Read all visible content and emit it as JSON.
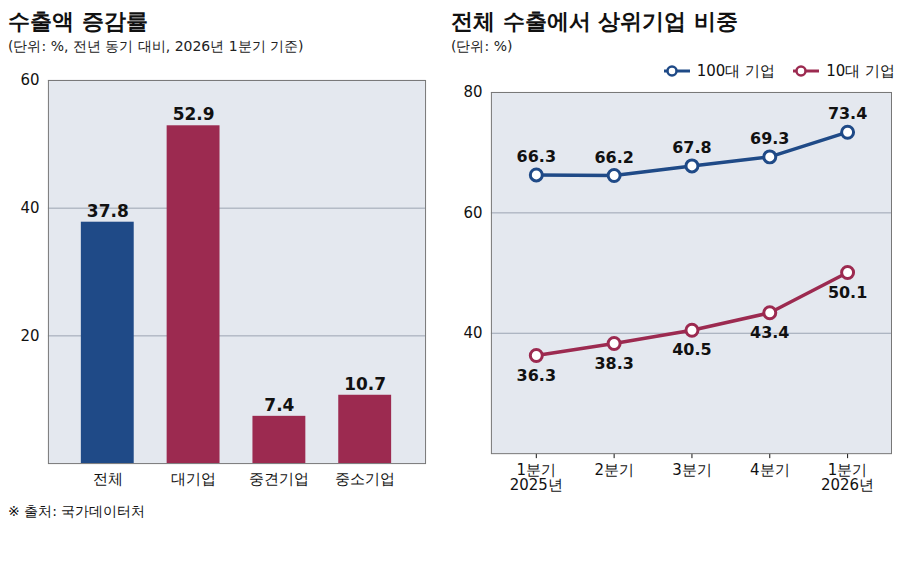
{
  "chart_data": [
    {
      "type": "bar",
      "title": "수출액 증감률",
      "subtitle": "(단위: %, 전년 동기 대비, 2026년 1분기 기준)",
      "categories": [
        "전체",
        "대기업",
        "중견기업",
        "중소기업"
      ],
      "values": [
        37.8,
        52.9,
        7.4,
        10.7
      ],
      "colors": [
        "#1f4a87",
        "#9c2a50",
        "#9c2a50",
        "#9c2a50"
      ],
      "ylim": [
        0,
        60
      ],
      "yticks": [
        20,
        40,
        60
      ],
      "grid": true,
      "data_labels": true
    },
    {
      "type": "line",
      "title": "전체 수출에서 상위기업 비중",
      "subtitle": "(단위: %)",
      "categories": [
        "1분기\n2025년",
        "2분기",
        "3분기",
        "4분기",
        "1분기\n2026년"
      ],
      "series": [
        {
          "name": "100대 기업",
          "color": "#1f4a87",
          "marker": "circle",
          "values": [
            66.3,
            66.2,
            67.8,
            69.3,
            73.4
          ]
        },
        {
          "name": "10대 기업",
          "color": "#9c2a50",
          "marker": "circle",
          "values": [
            36.3,
            38.3,
            40.5,
            43.4,
            50.1
          ]
        }
      ],
      "ylim": [
        20,
        80
      ],
      "yticks": [
        40,
        60,
        80
      ],
      "grid": true,
      "data_labels": true,
      "legend": "top-right"
    }
  ],
  "source": "※ 출처: 국가데이터처"
}
